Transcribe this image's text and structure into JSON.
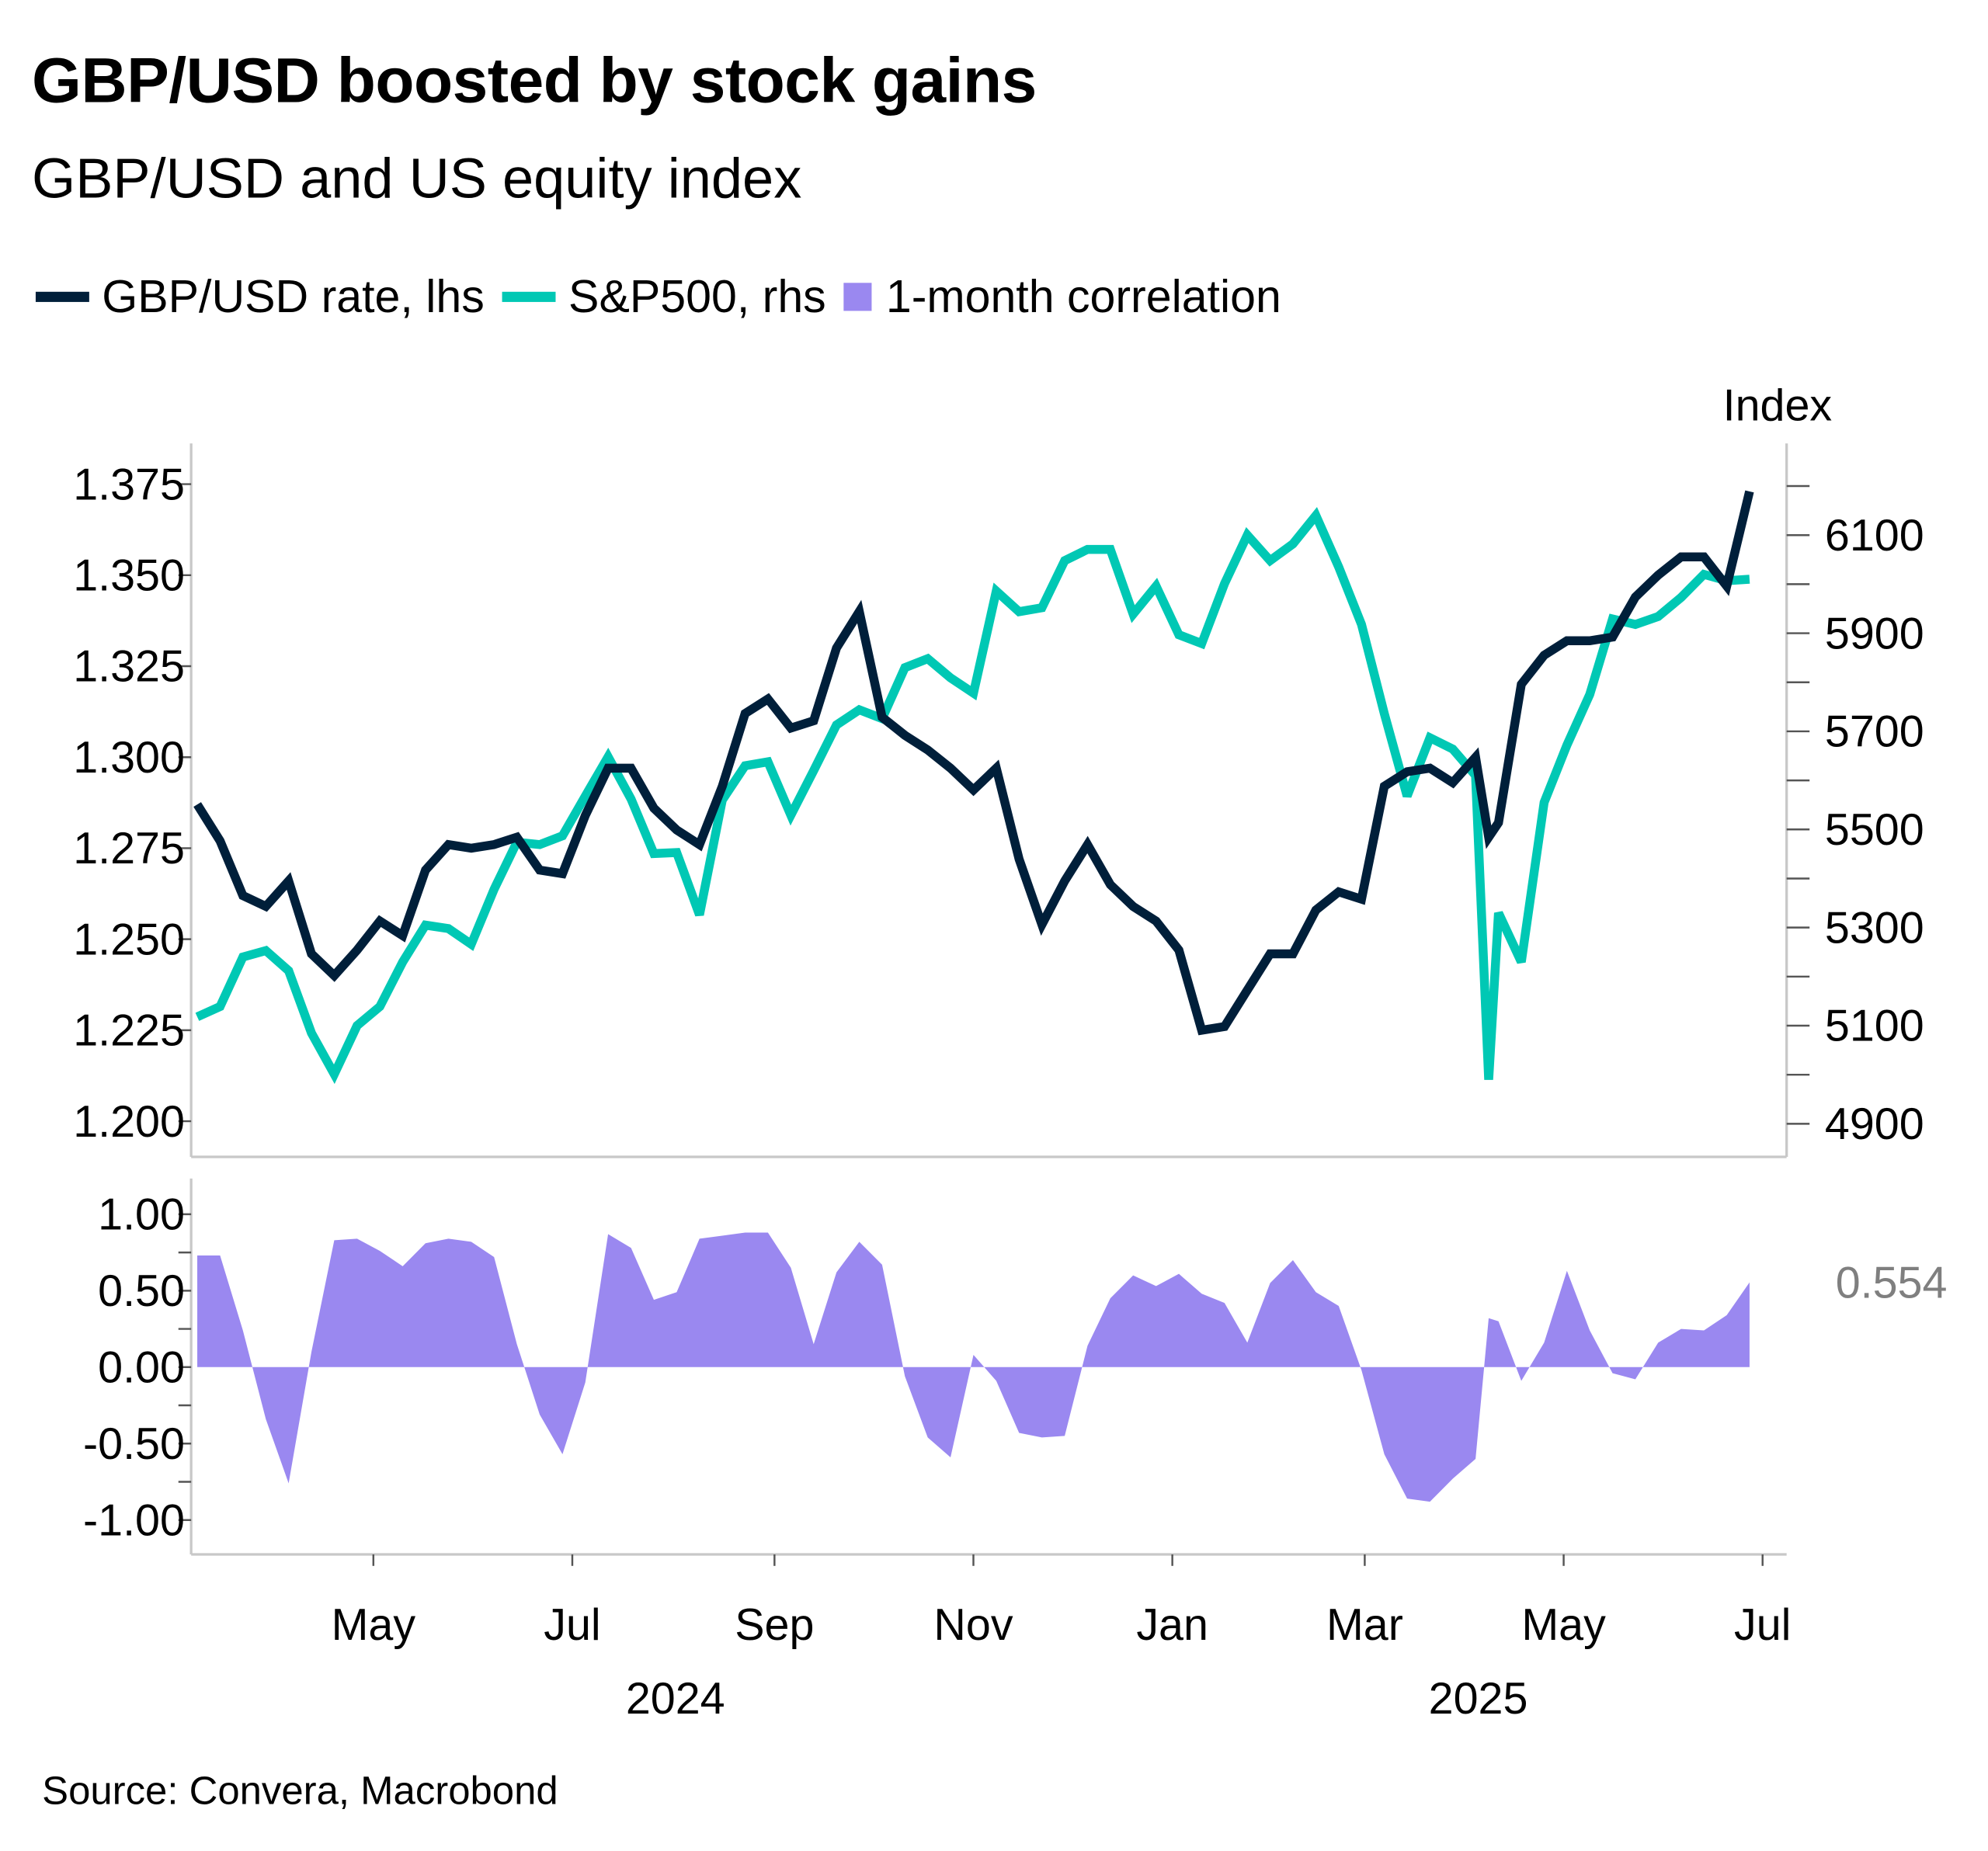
{
  "title": "GBP/USD boosted by stock gains",
  "subtitle": "GBP/USD and US equity index",
  "source": "Source: Convera, Macrobond",
  "colors": {
    "gbpusd": "#001f3a",
    "sp500": "#00c8b4",
    "correlation": "#9a88f0",
    "last_value": "#7f7f7f",
    "axis": "#c8c8c8"
  },
  "legend": [
    {
      "label": "GBP/USD rate, lhs",
      "symbol": "line"
    },
    {
      "label": "S&P500, rhs",
      "symbol": "line"
    },
    {
      "label": "1-month correlation",
      "symbol": "square"
    }
  ],
  "chart_data": [
    {
      "type": "line",
      "panel": "top",
      "right_axis_label": "Index",
      "left_ylim": [
        1.2,
        1.375
      ],
      "left_ticks": [
        "1.375",
        "1.350",
        "1.325",
        "1.300",
        "1.275",
        "1.250",
        "1.225",
        "1.200"
      ],
      "right_ylim": [
        4900,
        6200
      ],
      "right_ticks": [
        "6100",
        "5900",
        "5700",
        "5500",
        "5300",
        "5100",
        "4900"
      ],
      "grid": false,
      "legend_position": "top-left",
      "x": [
        "2024-03-08",
        "2024-03-15",
        "2024-03-22",
        "2024-03-29",
        "2024-04-05",
        "2024-04-12",
        "2024-04-19",
        "2024-04-26",
        "2024-05-03",
        "2024-05-10",
        "2024-05-17",
        "2024-05-24",
        "2024-05-31",
        "2024-06-07",
        "2024-06-14",
        "2024-06-21",
        "2024-06-28",
        "2024-07-05",
        "2024-07-12",
        "2024-07-19",
        "2024-07-26",
        "2024-08-02",
        "2024-08-09",
        "2024-08-16",
        "2024-08-23",
        "2024-08-30",
        "2024-09-06",
        "2024-09-13",
        "2024-09-20",
        "2024-09-27",
        "2024-10-04",
        "2024-10-11",
        "2024-10-18",
        "2024-10-25",
        "2024-11-01",
        "2024-11-08",
        "2024-11-15",
        "2024-11-22",
        "2024-11-29",
        "2024-12-06",
        "2024-12-13",
        "2024-12-20",
        "2024-12-27",
        "2025-01-03",
        "2025-01-10",
        "2025-01-17",
        "2025-01-24",
        "2025-01-31",
        "2025-02-07",
        "2025-02-14",
        "2025-02-21",
        "2025-02-28",
        "2025-03-07",
        "2025-03-14",
        "2025-03-21",
        "2025-03-28",
        "2025-04-04",
        "2025-04-08",
        "2025-04-11",
        "2025-04-18",
        "2025-04-25",
        "2025-05-02",
        "2025-05-09",
        "2025-05-16",
        "2025-05-23",
        "2025-05-30",
        "2025-06-06",
        "2025-06-13",
        "2025-06-20",
        "2025-06-27"
      ],
      "series": [
        {
          "name": "GBP/USD rate, lhs",
          "axis": "left",
          "values": [
            1.287,
            1.277,
            1.262,
            1.259,
            1.266,
            1.246,
            1.24,
            1.247,
            1.255,
            1.251,
            1.269,
            1.276,
            1.275,
            1.276,
            1.278,
            1.269,
            1.268,
            1.284,
            1.297,
            1.297,
            1.286,
            1.28,
            1.276,
            1.292,
            1.312,
            1.316,
            1.308,
            1.31,
            1.33,
            1.34,
            1.311,
            1.306,
            1.302,
            1.297,
            1.291,
            1.297,
            1.272,
            1.254,
            1.266,
            1.276,
            1.265,
            1.259,
            1.255,
            1.247,
            1.225,
            1.226,
            1.236,
            1.246,
            1.246,
            1.258,
            1.263,
            1.261,
            1.292,
            1.296,
            1.297,
            1.293,
            1.3,
            1.278,
            1.282,
            1.32,
            1.328,
            1.332,
            1.332,
            1.333,
            1.344,
            1.35,
            1.355,
            1.355,
            1.347,
            1.373
          ]
        },
        {
          "name": "S&P500, rhs",
          "axis": "right",
          "values": [
            5118,
            5139,
            5240,
            5253,
            5212,
            5085,
            5001,
            5100,
            5139,
            5230,
            5305,
            5298,
            5266,
            5378,
            5474,
            5469,
            5487,
            5568,
            5648,
            5562,
            5451,
            5453,
            5326,
            5560,
            5630,
            5638,
            5529,
            5620,
            5713,
            5744,
            5726,
            5830,
            5848,
            5809,
            5778,
            5986,
            5944,
            5952,
            6048,
            6071,
            6071,
            5939,
            5996,
            5897,
            5879,
            6001,
            6100,
            6048,
            6082,
            6140,
            6035,
            5918,
            5736,
            5568,
            5687,
            5664,
            5610,
            4990,
            5330,
            5230,
            5555,
            5672,
            5775,
            5929,
            5918,
            5934,
            5973,
            6020,
            6007,
            6010
          ]
        }
      ]
    },
    {
      "type": "area",
      "panel": "bottom",
      "ylim": [
        -1.0,
        1.0
      ],
      "y_ticks": [
        "1.00",
        "0.50",
        "0.00",
        "-0.50",
        "-1.00"
      ],
      "last_value_label": "0.554",
      "series": [
        {
          "name": "1-month correlation",
          "values": [
            0.73,
            0.73,
            0.24,
            -0.34,
            -0.76,
            0.1,
            0.83,
            0.84,
            0.76,
            0.66,
            0.81,
            0.84,
            0.82,
            0.72,
            0.15,
            -0.31,
            -0.57,
            -0.1,
            0.87,
            0.78,
            0.44,
            0.49,
            0.84,
            0.86,
            0.88,
            0.88,
            0.65,
            0.15,
            0.62,
            0.82,
            0.67,
            -0.06,
            -0.46,
            -0.59,
            0.08,
            -0.09,
            -0.43,
            -0.46,
            -0.45,
            0.14,
            0.45,
            0.6,
            0.53,
            0.61,
            0.48,
            0.42,
            0.16,
            0.55,
            0.7,
            0.49,
            0.4,
            -0.02,
            -0.57,
            -0.86,
            -0.88,
            -0.73,
            -0.6,
            0.32,
            0.3,
            -0.09,
            0.16,
            0.63,
            0.24,
            -0.04,
            -0.08,
            0.16,
            0.25,
            0.24,
            0.34,
            0.554
          ]
        }
      ]
    }
  ],
  "x_axis": {
    "month_ticks": [
      {
        "label": "May",
        "date": "2024-05-01"
      },
      {
        "label": "Jul",
        "date": "2024-07-01"
      },
      {
        "label": "Sep",
        "date": "2024-09-01"
      },
      {
        "label": "Nov",
        "date": "2024-11-01"
      },
      {
        "label": "Jan",
        "date": "2025-01-01"
      },
      {
        "label": "Mar",
        "date": "2025-03-01"
      },
      {
        "label": "May",
        "date": "2025-05-01"
      },
      {
        "label": "Jul",
        "date": "2025-07-01"
      }
    ],
    "years": [
      "2024",
      "2025"
    ]
  }
}
